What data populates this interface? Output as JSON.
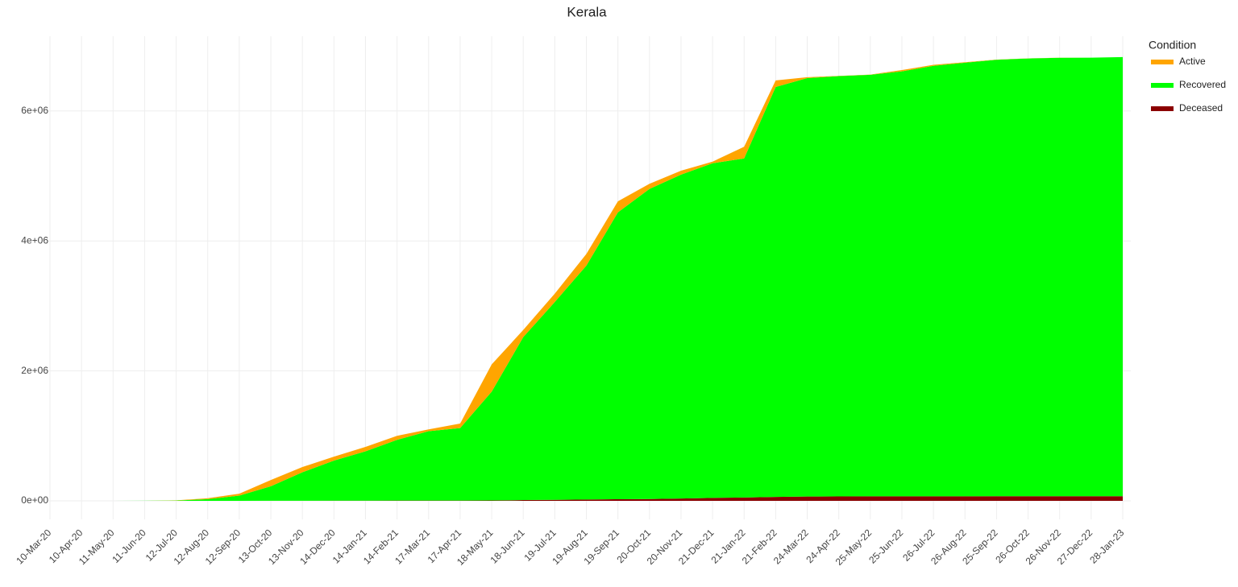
{
  "chart_data": {
    "type": "stacked_area",
    "title": "Kerala",
    "legend_title": "Condition",
    "legend": "right",
    "categories": [
      "10-Mar-20",
      "10-Apr-20",
      "11-May-20",
      "11-Jun-20",
      "12-Jul-20",
      "12-Aug-20",
      "12-Sep-20",
      "13-Oct-20",
      "13-Nov-20",
      "14-Dec-20",
      "14-Jan-21",
      "14-Feb-21",
      "17-Mar-21",
      "17-Apr-21",
      "18-May-21",
      "18-Jun-21",
      "19-Jul-21",
      "19-Aug-21",
      "19-Sep-21",
      "20-Oct-21",
      "20-Nov-21",
      "21-Dec-21",
      "21-Jan-22",
      "21-Feb-22",
      "24-Mar-22",
      "24-Apr-22",
      "25-May-22",
      "25-Jun-22",
      "26-Jul-22",
      "26-Aug-22",
      "25-Sep-22",
      "26-Oct-22",
      "26-Nov-22",
      "27-Dec-22",
      "28-Jan-23"
    ],
    "series": [
      {
        "name": "Active",
        "color": "#FFA500",
        "values": [
          0,
          250,
          20,
          1200,
          4000,
          13000,
          30000,
          95000,
          80000,
          60000,
          68000,
          62000,
          28000,
          70000,
          420000,
          110000,
          130000,
          180000,
          170000,
          80000,
          60000,
          25000,
          180000,
          100000,
          15000,
          3000,
          2500,
          20000,
          15000,
          8000,
          3000,
          2000,
          1000,
          500,
          200
        ]
      },
      {
        "name": "Recovered",
        "color": "#00FF00",
        "values": [
          0,
          148,
          476,
          885,
          3965,
          26870,
          79550,
          223900,
          438100,
          617300,
          758600,
          934000,
          1067500,
          1115100,
          1673500,
          2508200,
          3044300,
          3600500,
          4415200,
          4772300,
          4984000,
          5149400,
          5219000,
          6310000,
          6439000,
          6468800,
          6488100,
          6540200,
          6624900,
          6671600,
          6716000,
          6736700,
          6747500,
          6747900,
          6758000
        ]
      },
      {
        "name": "Deceased",
        "color": "#8B0000",
        "values": [
          0,
          2,
          4,
          15,
          35,
          130,
          450,
          1100,
          1900,
          2700,
          3400,
          4000,
          4500,
          4900,
          6500,
          11800,
          15700,
          19500,
          24800,
          27700,
          36000,
          45600,
          51000,
          60000,
          66000,
          68200,
          69400,
          69800,
          70100,
          70400,
          71000,
          71300,
          71500,
          71600,
          71800
        ]
      }
    ],
    "stack_order": [
      "Deceased",
      "Recovered",
      "Active"
    ],
    "ylim": [
      -285000,
      7150000
    ],
    "yticks": [
      {
        "value": 0,
        "label": "0e+00"
      },
      {
        "value": 2000000,
        "label": "2e+06"
      },
      {
        "value": 4000000,
        "label": "4e+06"
      },
      {
        "value": 6000000,
        "label": "6e+06"
      }
    ],
    "grid": true
  }
}
